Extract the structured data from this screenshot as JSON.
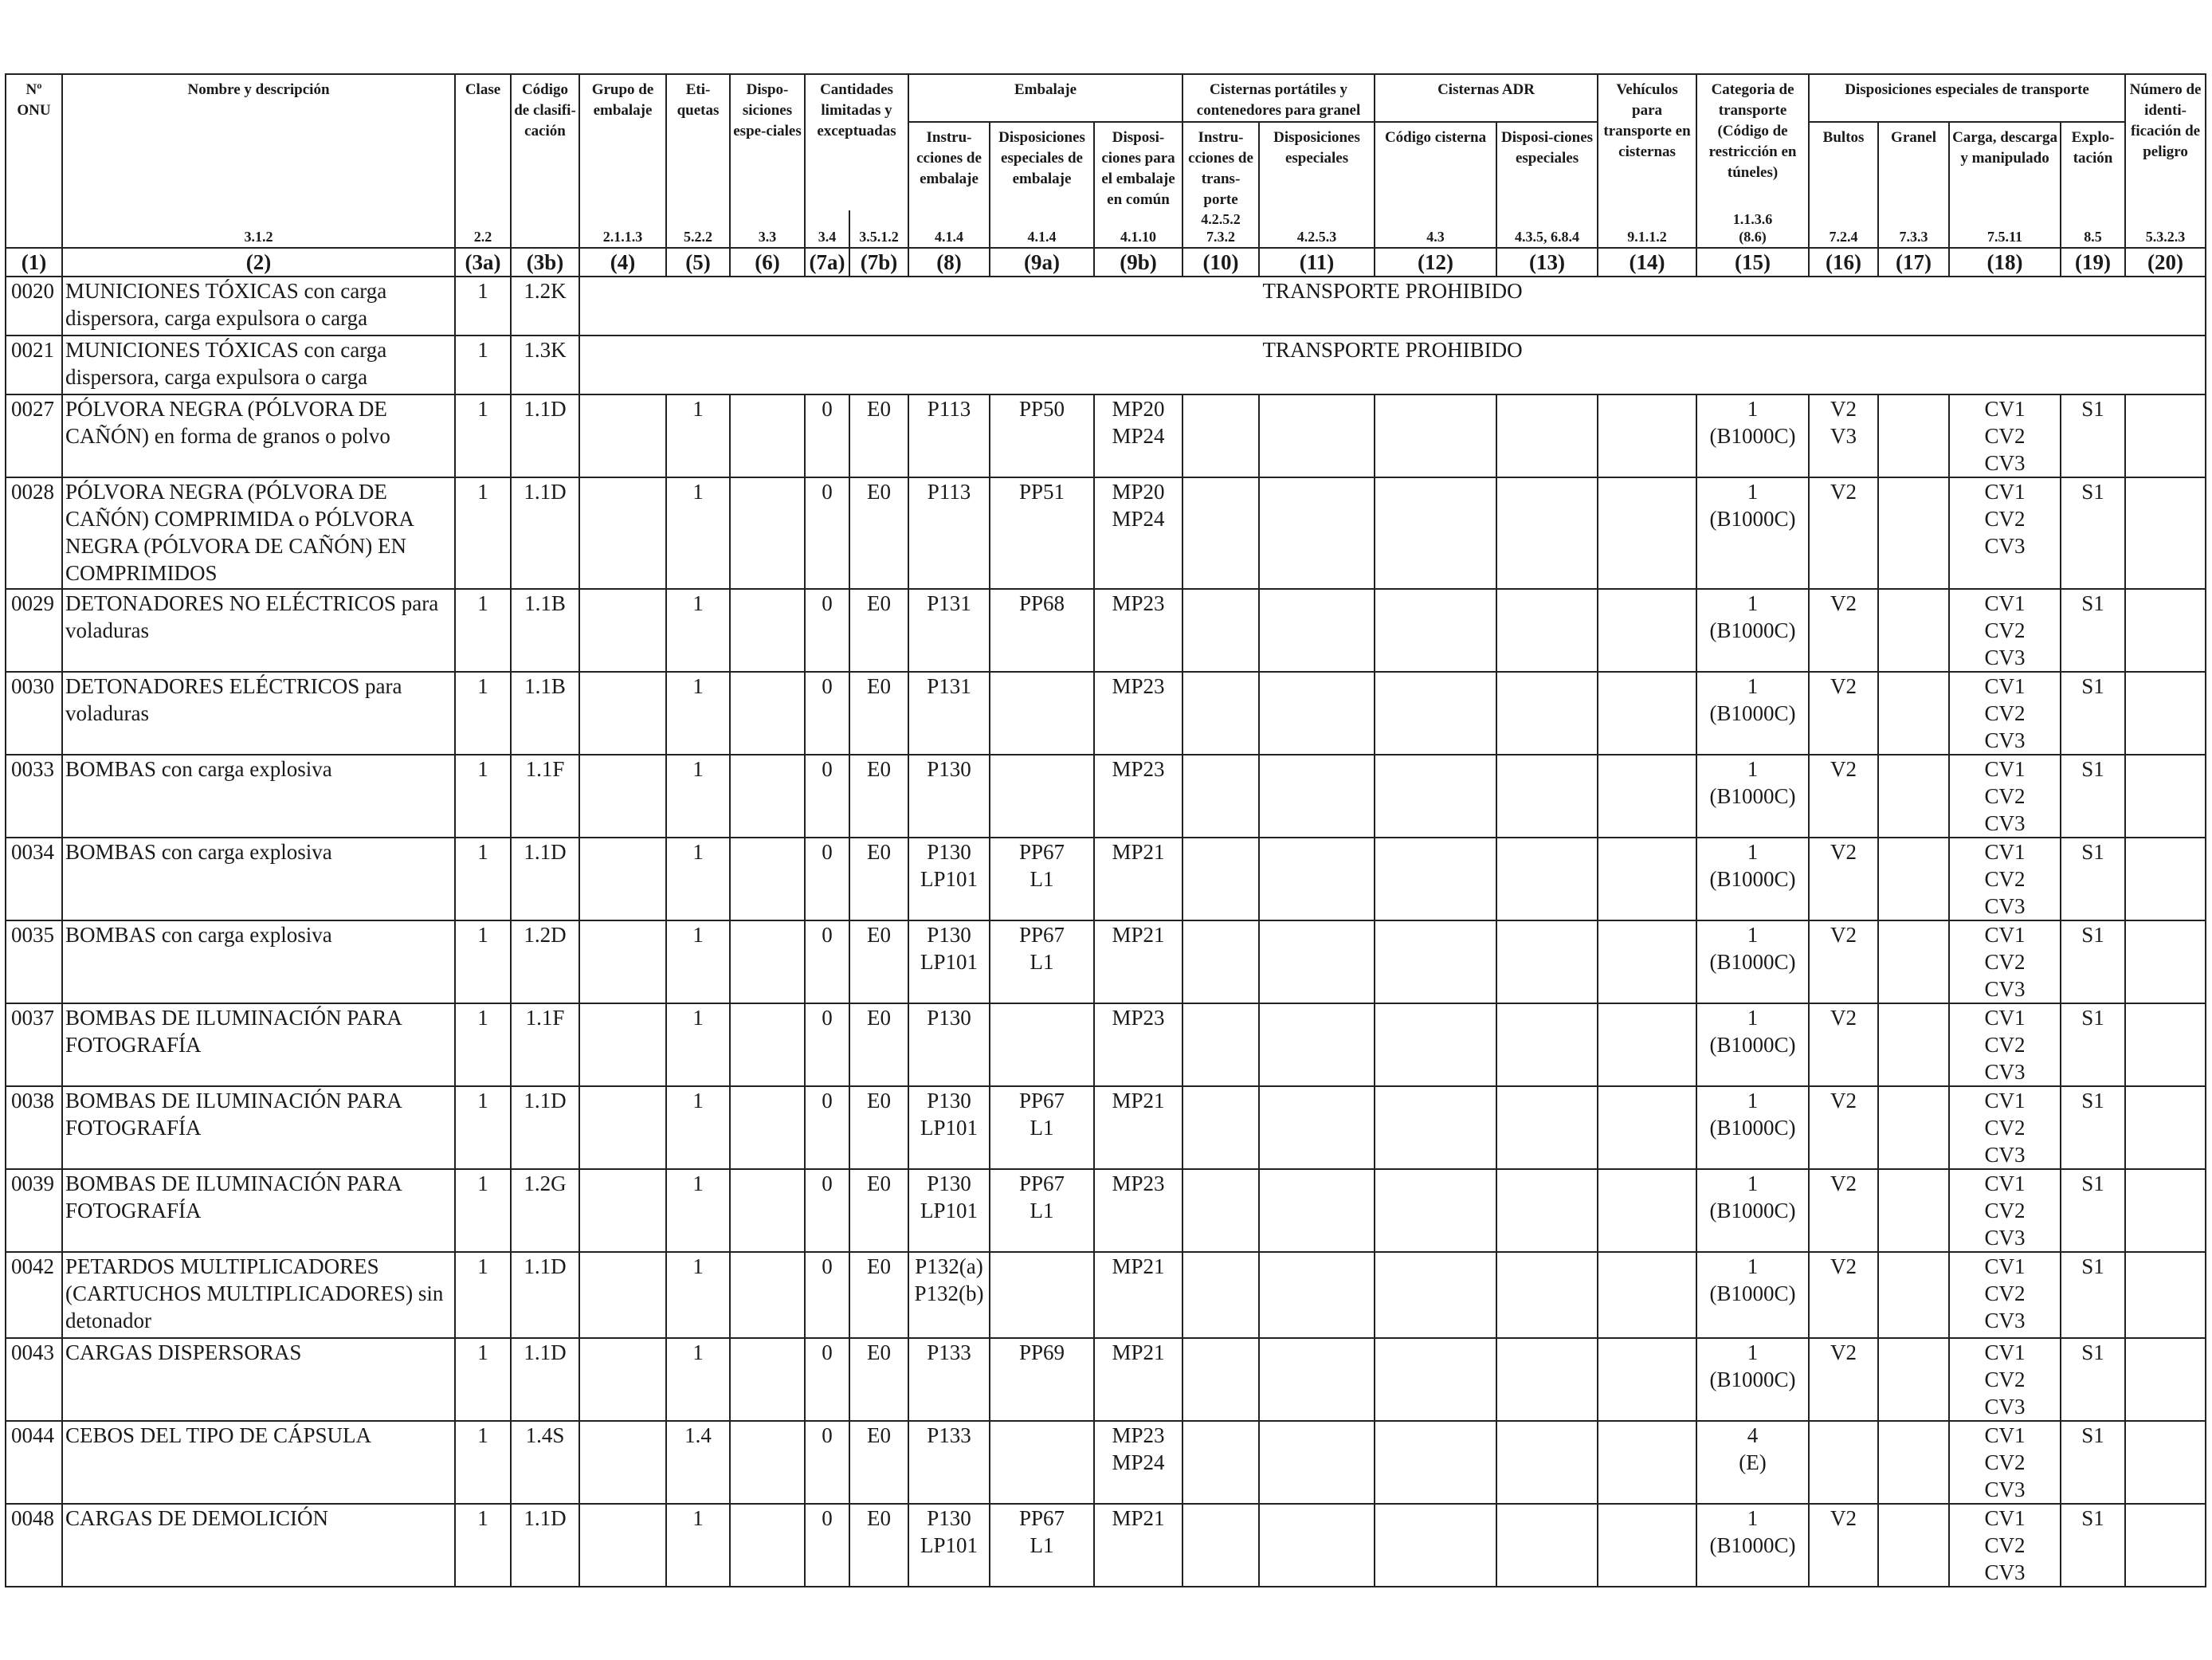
{
  "headers": {
    "onu": "Nº ONU",
    "nombre": "Nombre y descripción",
    "clase": "Clase",
    "codigo": "Código de clasifi-cación",
    "grupo": "Grupo de embalaje",
    "etiquetas": "Eti-quetas",
    "dispo_especiales": "Dispo-siciones espe-ciales",
    "cantidades": "Cantidades limitadas y exceptuadas",
    "embalaje": "Embalaje",
    "instrucciones_embalaje": "Instru-cciones de embalaje",
    "disp_esp_embalaje": "Disposiciones especiales de embalaje",
    "disp_embalaje_comun": "Disposi-ciones para el embalaje en común",
    "cisternas_portatiles": "Cisternas portátiles y contenedores para granel",
    "instr_transporte": "Instru-cciones de trans-porte",
    "cp_disp_especiales": "Disposiciones especiales",
    "cisternas_adr": "Cisternas ADR",
    "codigo_cisterna": "Código cisterna",
    "adr_disp_especiales": "Disposi-ciones especiales",
    "vehiculos": "Vehículos para transporte en cisternas",
    "categoria": "Categoria de transporte (Código de restricción en túneles)",
    "disp_transporte": "Disposiciones especiales de transporte",
    "bultos": "Bultos",
    "granel": "Granel",
    "carga": "Carga, descarga y manipulado",
    "explotacion": "Explo-tación",
    "numero_peligro": "Número de identi-ficación de peligro"
  },
  "sections": [
    "",
    "3.1.2",
    "2.2",
    "",
    "2.1.1.3",
    "5.2.2",
    "3.3",
    "3.4",
    "3.5.1.2",
    "4.1.4",
    "4.1.4",
    "4.1.10",
    "4.2.5.2\n7.3.2",
    "4.2.5.3",
    "4.3",
    "4.3.5, 6.8.4",
    "9.1.1.2",
    "1.1.3.6\n(8.6)",
    "7.2.4",
    "7.3.3",
    "7.5.11",
    "8.5",
    "5.3.2.3"
  ],
  "column_numbers": [
    "(1)",
    "(2)",
    "(3a)",
    "(3b)",
    "(4)",
    "(5)",
    "(6)",
    "(7a)",
    "(7b)",
    "(8)",
    "(9a)",
    "(9b)",
    "(10)",
    "(11)",
    "(12)",
    "(13)",
    "(14)",
    "(15)",
    "(16)",
    "(17)",
    "(18)",
    "(19)",
    "(20)"
  ],
  "prohibited_text": "TRANSPORTE PROHIBIDO",
  "rows": [
    {
      "onu": "0020",
      "name": "MUNICIONES TÓXICAS con carga dispersora, carga expulsora o carga",
      "clase": "1",
      "codigo": "1.2K",
      "prohibited": true
    },
    {
      "onu": "0021",
      "name": "MUNICIONES TÓXICAS con carga dispersora, carga expulsora o carga",
      "clase": "1",
      "codigo": "1.3K",
      "prohibited": true
    },
    {
      "onu": "0027",
      "name": "PÓLVORA NEGRA (PÓLVORA DE CAÑÓN) en forma de granos o polvo",
      "clase": "1",
      "codigo": "1.1D",
      "grupo": "",
      "etiquetas": "1",
      "dispo": "",
      "c7a": "0",
      "c7b": "E0",
      "c8": "P113",
      "c9a": "PP50",
      "c9b": "MP20\nMP24",
      "c10": "",
      "c11": "",
      "c12": "",
      "c13": "",
      "c14": "",
      "c15": "1\n(B1000C)",
      "c16": "V2\nV3",
      "c17": "",
      "c18": "CV1\nCV2\nCV3",
      "c19": "S1",
      "c20": ""
    },
    {
      "onu": "0028",
      "name": "PÓLVORA NEGRA (PÓLVORA DE CAÑÓN) COMPRIMIDA o PÓLVORA NEGRA (PÓLVORA DE CAÑÓN) EN COMPRIMIDOS",
      "clase": "1",
      "codigo": "1.1D",
      "grupo": "",
      "etiquetas": "1",
      "dispo": "",
      "c7a": "0",
      "c7b": "E0",
      "c8": "P113",
      "c9a": "PP51",
      "c9b": "MP20\nMP24",
      "c10": "",
      "c11": "",
      "c12": "",
      "c13": "",
      "c14": "",
      "c15": "1\n(B1000C)",
      "c16": "V2",
      "c17": "",
      "c18": "CV1\nCV2\nCV3",
      "c19": "S1",
      "c20": ""
    },
    {
      "onu": "0029",
      "name": "DETONADORES NO ELÉCTRICOS para voladuras",
      "clase": "1",
      "codigo": "1.1B",
      "grupo": "",
      "etiquetas": "1",
      "dispo": "",
      "c7a": "0",
      "c7b": "E0",
      "c8": "P131",
      "c9a": "PP68",
      "c9b": "MP23",
      "c10": "",
      "c11": "",
      "c12": "",
      "c13": "",
      "c14": "",
      "c15": "1\n(B1000C)",
      "c16": "V2",
      "c17": "",
      "c18": "CV1\nCV2\nCV3",
      "c19": "S1",
      "c20": ""
    },
    {
      "onu": "0030",
      "name": "DETONADORES ELÉCTRICOS para voladuras",
      "clase": "1",
      "codigo": "1.1B",
      "grupo": "",
      "etiquetas": "1",
      "dispo": "",
      "c7a": "0",
      "c7b": "E0",
      "c8": "P131",
      "c9a": "",
      "c9b": "MP23",
      "c10": "",
      "c11": "",
      "c12": "",
      "c13": "",
      "c14": "",
      "c15": "1\n(B1000C)",
      "c16": "V2",
      "c17": "",
      "c18": "CV1\nCV2\nCV3",
      "c19": "S1",
      "c20": ""
    },
    {
      "onu": "0033",
      "name": "BOMBAS con carga explosiva",
      "clase": "1",
      "codigo": "1.1F",
      "grupo": "",
      "etiquetas": "1",
      "dispo": "",
      "c7a": "0",
      "c7b": "E0",
      "c8": "P130",
      "c9a": "",
      "c9b": "MP23",
      "c10": "",
      "c11": "",
      "c12": "",
      "c13": "",
      "c14": "",
      "c15": "1\n(B1000C)",
      "c16": "V2",
      "c17": "",
      "c18": "CV1\nCV2\nCV3",
      "c19": "S1",
      "c20": ""
    },
    {
      "onu": "0034",
      "name": "BOMBAS con carga explosiva",
      "clase": "1",
      "codigo": "1.1D",
      "grupo": "",
      "etiquetas": "1",
      "dispo": "",
      "c7a": "0",
      "c7b": "E0",
      "c8": "P130\nLP101",
      "c9a": "PP67\nL1",
      "c9b": "MP21",
      "c10": "",
      "c11": "",
      "c12": "",
      "c13": "",
      "c14": "",
      "c15": "1\n(B1000C)",
      "c16": "V2",
      "c17": "",
      "c18": "CV1\nCV2\nCV3",
      "c19": "S1",
      "c20": ""
    },
    {
      "onu": "0035",
      "name": "BOMBAS con carga explosiva",
      "clase": "1",
      "codigo": "1.2D",
      "grupo": "",
      "etiquetas": "1",
      "dispo": "",
      "c7a": "0",
      "c7b": "E0",
      "c8": "P130\nLP101",
      "c9a": "PP67\nL1",
      "c9b": "MP21",
      "c10": "",
      "c11": "",
      "c12": "",
      "c13": "",
      "c14": "",
      "c15": "1\n(B1000C)",
      "c16": "V2",
      "c17": "",
      "c18": "CV1\nCV2\nCV3",
      "c19": "S1",
      "c20": ""
    },
    {
      "onu": "0037",
      "name": "BOMBAS DE ILUMINACIÓN PARA FOTOGRAFÍA",
      "clase": "1",
      "codigo": "1.1F",
      "grupo": "",
      "etiquetas": "1",
      "dispo": "",
      "c7a": "0",
      "c7b": "E0",
      "c8": "P130",
      "c9a": "",
      "c9b": "MP23",
      "c10": "",
      "c11": "",
      "c12": "",
      "c13": "",
      "c14": "",
      "c15": "1\n(B1000C)",
      "c16": "V2",
      "c17": "",
      "c18": "CV1\nCV2\nCV3",
      "c19": "S1",
      "c20": ""
    },
    {
      "onu": "0038",
      "name": "BOMBAS DE ILUMINACIÓN PARA FOTOGRAFÍA",
      "clase": "1",
      "codigo": "1.1D",
      "grupo": "",
      "etiquetas": "1",
      "dispo": "",
      "c7a": "0",
      "c7b": "E0",
      "c8": "P130\nLP101",
      "c9a": "PP67\nL1",
      "c9b": "MP21",
      "c10": "",
      "c11": "",
      "c12": "",
      "c13": "",
      "c14": "",
      "c15": "1\n(B1000C)",
      "c16": "V2",
      "c17": "",
      "c18": "CV1\nCV2\nCV3",
      "c19": "S1",
      "c20": ""
    },
    {
      "onu": "0039",
      "name": "BOMBAS DE ILUMINACIÓN PARA FOTOGRAFÍA",
      "clase": "1",
      "codigo": "1.2G",
      "grupo": "",
      "etiquetas": "1",
      "dispo": "",
      "c7a": "0",
      "c7b": "E0",
      "c8": "P130\nLP101",
      "c9a": "PP67\nL1",
      "c9b": "MP23",
      "c10": "",
      "c11": "",
      "c12": "",
      "c13": "",
      "c14": "",
      "c15": "1\n(B1000C)",
      "c16": "V2",
      "c17": "",
      "c18": "CV1\nCV2\nCV3",
      "c19": "S1",
      "c20": ""
    },
    {
      "onu": "0042",
      "name": "PETARDOS MULTIPLICADORES (CARTUCHOS MULTIPLICADORES) sin detonador",
      "clase": "1",
      "codigo": "1.1D",
      "grupo": "",
      "etiquetas": "1",
      "dispo": "",
      "c7a": "0",
      "c7b": "E0",
      "c8": "P132(a)\nP132(b)",
      "c9a": "",
      "c9b": "MP21",
      "c10": "",
      "c11": "",
      "c12": "",
      "c13": "",
      "c14": "",
      "c15": "1\n(B1000C)",
      "c16": "V2",
      "c17": "",
      "c18": "CV1\nCV2\nCV3",
      "c19": "S1",
      "c20": ""
    },
    {
      "onu": "0043",
      "name": "CARGAS DISPERSORAS",
      "clase": "1",
      "codigo": "1.1D",
      "grupo": "",
      "etiquetas": "1",
      "dispo": "",
      "c7a": "0",
      "c7b": "E0",
      "c8": "P133",
      "c9a": "PP69",
      "c9b": "MP21",
      "c10": "",
      "c11": "",
      "c12": "",
      "c13": "",
      "c14": "",
      "c15": "1\n(B1000C)",
      "c16": "V2",
      "c17": "",
      "c18": "CV1\nCV2\nCV3",
      "c19": "S1",
      "c20": ""
    },
    {
      "onu": "0044",
      "name": "CEBOS DEL TIPO DE CÁPSULA",
      "clase": "1",
      "codigo": "1.4S",
      "grupo": "",
      "etiquetas": "1.4",
      "dispo": "",
      "c7a": "0",
      "c7b": "E0",
      "c8": "P133",
      "c9a": "",
      "c9b": "MP23\nMP24",
      "c10": "",
      "c11": "",
      "c12": "",
      "c13": "",
      "c14": "",
      "c15": "4\n(E)",
      "c16": "",
      "c17": "",
      "c18": "CV1\nCV2\nCV3",
      "c19": "S1",
      "c20": ""
    },
    {
      "onu": "0048",
      "name": "CARGAS DE DEMOLICIÓN",
      "clase": "1",
      "codigo": "1.1D",
      "grupo": "",
      "etiquetas": "1",
      "dispo": "",
      "c7a": "0",
      "c7b": "E0",
      "c8": "P130\nLP101",
      "c9a": "PP67\nL1",
      "c9b": "MP21",
      "c10": "",
      "c11": "",
      "c12": "",
      "c13": "",
      "c14": "",
      "c15": "1\n(B1000C)",
      "c16": "V2",
      "c17": "",
      "c18": "CV1\nCV2\nCV3",
      "c19": "S1",
      "c20": ""
    }
  ]
}
